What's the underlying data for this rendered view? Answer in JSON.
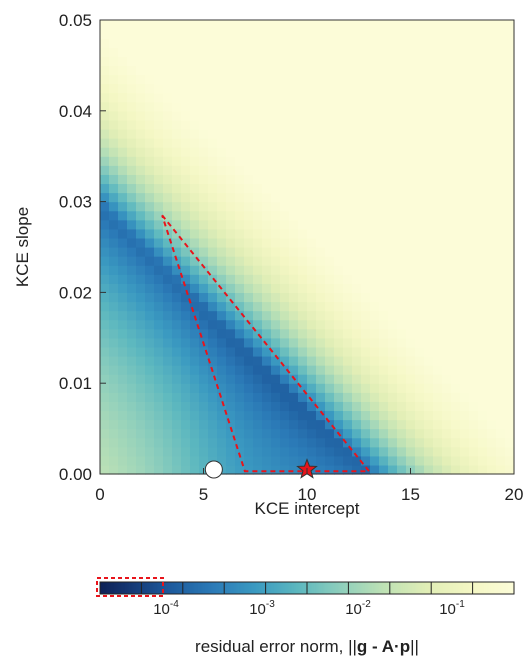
{
  "chart_data": {
    "type": "heatmap",
    "xlabel": "KCE intercept",
    "ylabel": "KCE slope",
    "xlim": [
      0,
      20
    ],
    "ylim": [
      0,
      0.05
    ],
    "xticks": [
      0,
      5,
      10,
      15,
      20
    ],
    "xtick_labels": [
      "0",
      "5",
      "10",
      "15",
      "20"
    ],
    "yticks": [
      0,
      0.01,
      0.02,
      0.03,
      0.04,
      0.05
    ],
    "ytick_labels": [
      "0.00",
      "0.01",
      "0.02",
      "0.03",
      "0.04",
      "0.05"
    ],
    "grid": false,
    "value_scale": "log",
    "value_description": "residual error norm over (KCE intercept, KCE slope) grid; minimum valley along intercept + 440·slope ≈ 13, dark region where error < 1e-4",
    "colormap": [
      "#0a1646",
      "#143570",
      "#1d5a9c",
      "#2b7ab7",
      "#3b9ac1",
      "#5db8bf",
      "#8fcfbc",
      "#bfe2b5",
      "#e1eeb6",
      "#f4f7c4",
      "#fcfcd8"
    ],
    "markers": [
      {
        "label": "circle",
        "x": 5.5,
        "y": 0.0005,
        "color": "#ffffff",
        "shape": "circle"
      },
      {
        "label": "star",
        "x": 10.0,
        "y": 0.0005,
        "color": "#e8141b",
        "shape": "star"
      }
    ],
    "contour": {
      "color": "#e8141b",
      "style": "dashed",
      "points": [
        [
          3.0,
          0.0285
        ],
        [
          13.0,
          0.0003
        ],
        [
          7.0,
          0.0003
        ],
        [
          3.0,
          0.0285
        ]
      ]
    },
    "colorbar": {
      "label": "residual error norm, ||g - A·p||",
      "label_prefix": "residual error norm, ||",
      "label_bold": "g - A·p",
      "label_suffix": "||",
      "tick_bases": [
        "10",
        "10",
        "10",
        "10"
      ],
      "tick_exponents": [
        "-4",
        "-3",
        "-2",
        "-1"
      ],
      "n_bins": 10,
      "highlight_box_color": "#e8141b"
    }
  }
}
